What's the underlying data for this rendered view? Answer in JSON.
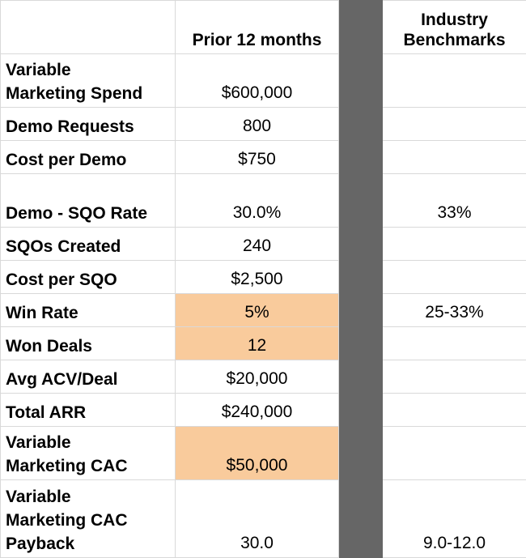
{
  "header": {
    "col_prior": "Prior 12 months",
    "col_bench_line1": "Industry",
    "col_bench_line2": "Benchmarks"
  },
  "rows": [
    {
      "label_line1": "Variable",
      "label_line2": "Marketing Spend",
      "value": "$600,000",
      "bench": ""
    },
    {
      "label": "Demo Requests",
      "value": "800",
      "bench": ""
    },
    {
      "label": "Cost per Demo",
      "value": "$750",
      "bench": ""
    },
    {
      "label": "Demo - SQO Rate",
      "value": "30.0%",
      "bench": "33%"
    },
    {
      "label": "SQOs Created",
      "value": "240",
      "bench": ""
    },
    {
      "label": "Cost per SQO",
      "value": "$2,500",
      "bench": ""
    },
    {
      "label": "Win Rate",
      "value": "5%",
      "bench": "25-33%"
    },
    {
      "label": "Won Deals",
      "value": "12",
      "bench": ""
    },
    {
      "label": "Avg ACV/Deal",
      "value": "$20,000",
      "bench": ""
    },
    {
      "label": "Total ARR",
      "value": "$240,000",
      "bench": ""
    },
    {
      "label_line1": "Variable",
      "label_line2": "Marketing CAC",
      "value": "$50,000",
      "bench": ""
    },
    {
      "label_line1": "Variable",
      "label_line2": "Marketing CAC",
      "label_line3": "Payback",
      "value": "30.0",
      "bench": "9.0-12.0"
    }
  ],
  "colors": {
    "highlight": "#f9cb9c",
    "gap_column": "#666666",
    "grid": "#d9d9d9"
  }
}
